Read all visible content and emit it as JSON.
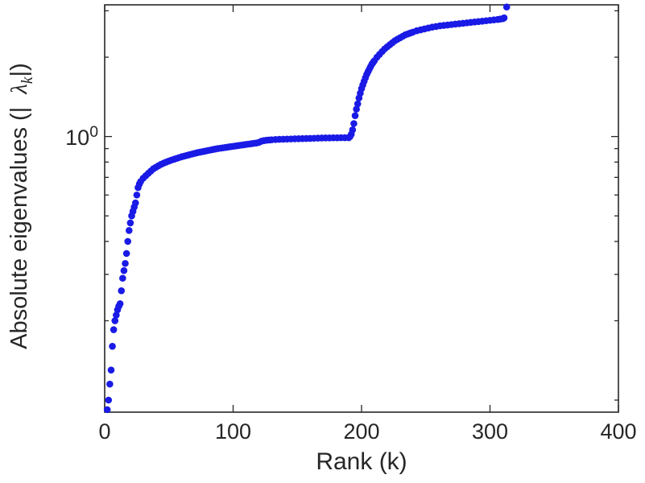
{
  "figure": {
    "background": "#ffffff",
    "axis_color": "#262626"
  },
  "labels": {
    "xlabel": "Rank (k)",
    "ylabel_prefix": "Absolute eigenvalues (|",
    "lambda": "λ",
    "lambda_sub": "k",
    "ylabel_suffix": "|)",
    "ytick_base": "10",
    "ytick_exponent": "0"
  },
  "chart_data": {
    "type": "scatter",
    "title": "",
    "xlabel": "Rank (k)",
    "ylabel": "Absolute eigenvalues (|lambda_k|)",
    "xlim": [
      0,
      400
    ],
    "ylim": [
      0.09,
      3.16
    ],
    "xscale": "linear",
    "yscale": "log",
    "grid": false,
    "x_ticks": [
      0,
      100,
      200,
      300,
      400
    ],
    "y_ticks": [
      {
        "value": 1,
        "label": "10^0"
      }
    ],
    "series": [
      {
        "name": "absolute-eigenvalues",
        "marker": "point",
        "color": "#1a1ae6",
        "points": [
          [
            2,
            0.092
          ],
          [
            3,
            0.1
          ],
          [
            4,
            0.115
          ],
          [
            5,
            0.13
          ],
          [
            6,
            0.16
          ],
          [
            7,
            0.185
          ],
          [
            8,
            0.2
          ],
          [
            9,
            0.21
          ],
          [
            10,
            0.22
          ],
          [
            11,
            0.227
          ],
          [
            12,
            0.232
          ],
          [
            13,
            0.26
          ],
          [
            14,
            0.29
          ],
          [
            15,
            0.31
          ],
          [
            16,
            0.33
          ],
          [
            17,
            0.36
          ],
          [
            18,
            0.4
          ],
          [
            19,
            0.44
          ],
          [
            20,
            0.47
          ],
          [
            21,
            0.5
          ],
          [
            22,
            0.52
          ],
          [
            23,
            0.54
          ],
          [
            24,
            0.56
          ],
          [
            25,
            0.6
          ],
          [
            26,
            0.64
          ],
          [
            27,
            0.66
          ],
          [
            28,
            0.675
          ],
          [
            30,
            0.695
          ],
          [
            32,
            0.71
          ],
          [
            34,
            0.725
          ],
          [
            36,
            0.74
          ],
          [
            38,
            0.755
          ],
          [
            40,
            0.765
          ],
          [
            42,
            0.775
          ],
          [
            44,
            0.785
          ],
          [
            46,
            0.793
          ],
          [
            48,
            0.8
          ],
          [
            50,
            0.807
          ],
          [
            52,
            0.814
          ],
          [
            54,
            0.82
          ],
          [
            56,
            0.826
          ],
          [
            58,
            0.832
          ],
          [
            60,
            0.838
          ],
          [
            62,
            0.843
          ],
          [
            64,
            0.848
          ],
          [
            66,
            0.853
          ],
          [
            68,
            0.858
          ],
          [
            70,
            0.863
          ],
          [
            72,
            0.868
          ],
          [
            74,
            0.872
          ],
          [
            76,
            0.876
          ],
          [
            78,
            0.88
          ],
          [
            80,
            0.884
          ],
          [
            82,
            0.888
          ],
          [
            84,
            0.892
          ],
          [
            86,
            0.896
          ],
          [
            88,
            0.9
          ],
          [
            90,
            0.903
          ],
          [
            92,
            0.906
          ],
          [
            94,
            0.909
          ],
          [
            96,
            0.912
          ],
          [
            98,
            0.915
          ],
          [
            100,
            0.918
          ],
          [
            102,
            0.921
          ],
          [
            104,
            0.924
          ],
          [
            106,
            0.927
          ],
          [
            108,
            0.93
          ],
          [
            110,
            0.933
          ],
          [
            112,
            0.936
          ],
          [
            114,
            0.939
          ],
          [
            116,
            0.942
          ],
          [
            118,
            0.945
          ],
          [
            120,
            0.95
          ],
          [
            122,
            0.96
          ],
          [
            124,
            0.965
          ],
          [
            126,
            0.968
          ],
          [
            128,
            0.97
          ],
          [
            130,
            0.972
          ],
          [
            133,
            0.974
          ],
          [
            136,
            0.976
          ],
          [
            139,
            0.977
          ],
          [
            142,
            0.978
          ],
          [
            145,
            0.979
          ],
          [
            148,
            0.98
          ],
          [
            151,
            0.981
          ],
          [
            154,
            0.982
          ],
          [
            157,
            0.983
          ],
          [
            160,
            0.984
          ],
          [
            163,
            0.985
          ],
          [
            166,
            0.986
          ],
          [
            169,
            0.987
          ],
          [
            172,
            0.988
          ],
          [
            175,
            0.988
          ],
          [
            178,
            0.989
          ],
          [
            181,
            0.989
          ],
          [
            184,
            0.99
          ],
          [
            187,
            0.99
          ],
          [
            190,
            0.99
          ],
          [
            191,
            1.0
          ],
          [
            192,
            1.02
          ],
          [
            193,
            1.06
          ],
          [
            194,
            1.12
          ],
          [
            195,
            1.2
          ],
          [
            196,
            1.27
          ],
          [
            197,
            1.33
          ],
          [
            198,
            1.4
          ],
          [
            199,
            1.46
          ],
          [
            200,
            1.52
          ],
          [
            201,
            1.57
          ],
          [
            202,
            1.62
          ],
          [
            203,
            1.67
          ],
          [
            204,
            1.72
          ],
          [
            205,
            1.76
          ],
          [
            206,
            1.8
          ],
          [
            207,
            1.84
          ],
          [
            208,
            1.88
          ],
          [
            209,
            1.91
          ],
          [
            210,
            1.94
          ],
          [
            212,
            2.0
          ],
          [
            214,
            2.05
          ],
          [
            216,
            2.1
          ],
          [
            218,
            2.15
          ],
          [
            220,
            2.19
          ],
          [
            222,
            2.23
          ],
          [
            224,
            2.27
          ],
          [
            226,
            2.31
          ],
          [
            228,
            2.34
          ],
          [
            230,
            2.37
          ],
          [
            232,
            2.4
          ],
          [
            234,
            2.43
          ],
          [
            236,
            2.45
          ],
          [
            238,
            2.47
          ],
          [
            240,
            2.49
          ],
          [
            243,
            2.52
          ],
          [
            246,
            2.54
          ],
          [
            249,
            2.56
          ],
          [
            252,
            2.58
          ],
          [
            255,
            2.6
          ],
          [
            258,
            2.615
          ],
          [
            261,
            2.63
          ],
          [
            264,
            2.64
          ],
          [
            267,
            2.65
          ],
          [
            270,
            2.66
          ],
          [
            273,
            2.67
          ],
          [
            276,
            2.68
          ],
          [
            279,
            2.69
          ],
          [
            282,
            2.7
          ],
          [
            285,
            2.71
          ],
          [
            288,
            2.72
          ],
          [
            291,
            2.73
          ],
          [
            294,
            2.74
          ],
          [
            297,
            2.75
          ],
          [
            300,
            2.76
          ],
          [
            303,
            2.77
          ],
          [
            306,
            2.78
          ],
          [
            308,
            2.79
          ],
          [
            310,
            2.8
          ],
          [
            311,
            2.82
          ],
          [
            313,
            3.1
          ]
        ]
      }
    ]
  }
}
